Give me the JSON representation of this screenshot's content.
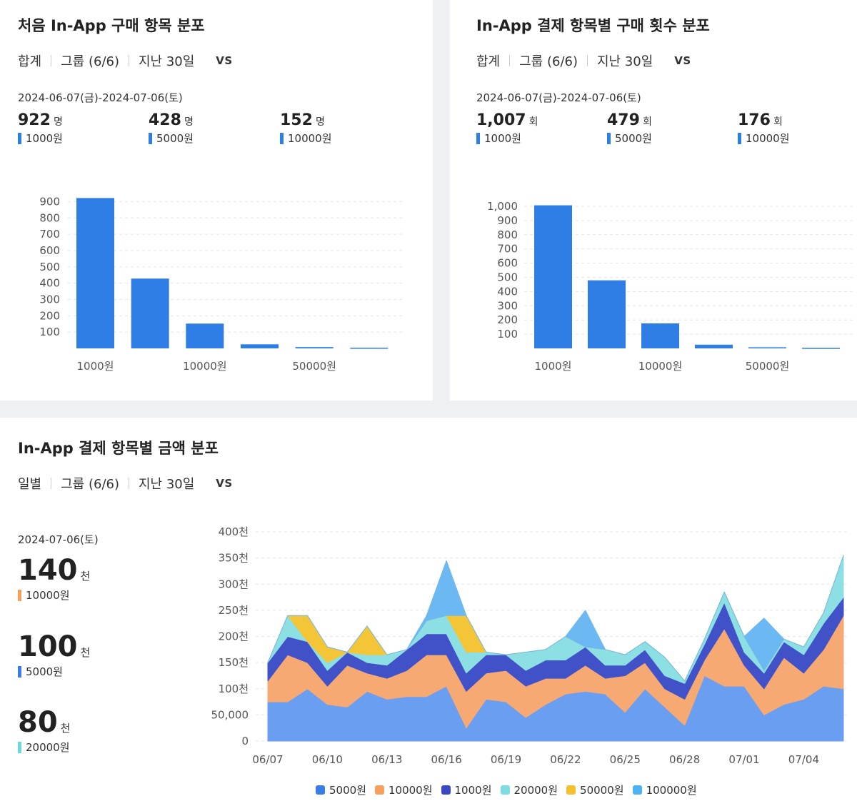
{
  "card1": {
    "title": "처음 In-App 구매 항목 분포",
    "filters": [
      "합계",
      "그룹 (6/6)",
      "지난 30일"
    ],
    "vs": "VS",
    "date": "2024-06-07(금)-2024-07-06(토)",
    "stats": [
      {
        "value": "922",
        "unit": "명",
        "label": "1000원"
      },
      {
        "value": "428",
        "unit": "명",
        "label": "5000원"
      },
      {
        "value": "152",
        "unit": "명",
        "label": "10000원"
      }
    ]
  },
  "card2": {
    "title": "In-App 결제 항목별 구매 횟수 분포",
    "filters": [
      "합계",
      "그룹 (6/6)",
      "지난 30일"
    ],
    "vs": "VS",
    "date": "2024-06-07(금)-2024-07-06(토)",
    "stats": [
      {
        "value": "1,007",
        "unit": "회",
        "label": "1000원"
      },
      {
        "value": "479",
        "unit": "회",
        "label": "5000원"
      },
      {
        "value": "176",
        "unit": "회",
        "label": "10000원"
      }
    ]
  },
  "card3": {
    "title": "In-App 결제 항목별 금액 분포",
    "filters": [
      "일별",
      "그룹 (6/6)",
      "지난 30일"
    ],
    "vs": "VS",
    "date": "2024-07-06(토)",
    "stats": [
      {
        "value": "140",
        "unit": "천",
        "label": "10000원",
        "color": "#f5a05c"
      },
      {
        "value": "100",
        "unit": "천",
        "label": "5000원",
        "color": "#3b7de6"
      },
      {
        "value": "80",
        "unit": "천",
        "label": "20000원",
        "color": "#6ad9de"
      }
    ]
  },
  "colors": {
    "bar": "#2f7ee5",
    "swatch": "#2f7ee5"
  },
  "chart_data": [
    {
      "type": "bar",
      "categories": [
        "1000원",
        "5000원",
        "10000원",
        "20000원",
        "50000원",
        "100000원"
      ],
      "tick_labels_x": [
        "1000원",
        "",
        "10000원",
        "",
        "50000원",
        ""
      ],
      "values": [
        922,
        428,
        152,
        25,
        8,
        4
      ],
      "yticks": [
        "100",
        "200",
        "300",
        "400",
        "500",
        "600",
        "700",
        "800",
        "900"
      ],
      "ylim": [
        0,
        950
      ]
    },
    {
      "type": "bar",
      "categories": [
        "1000원",
        "5000원",
        "10000원",
        "20000원",
        "50000원",
        "100000원"
      ],
      "tick_labels_x": [
        "1000원",
        "",
        "10000원",
        "",
        "50000원",
        ""
      ],
      "values": [
        1007,
        479,
        176,
        26,
        8,
        4
      ],
      "yticks": [
        "100",
        "200",
        "300",
        "400",
        "500",
        "600",
        "700",
        "800",
        "900",
        "1,000"
      ],
      "ylim": [
        0,
        1030
      ]
    },
    {
      "type": "area",
      "stacked": true,
      "x": [
        "06/07",
        "06/08",
        "06/09",
        "06/10",
        "06/11",
        "06/12",
        "06/13",
        "06/14",
        "06/15",
        "06/16",
        "06/17",
        "06/18",
        "06/19",
        "06/20",
        "06/21",
        "06/22",
        "06/23",
        "06/24",
        "06/25",
        "06/26",
        "06/27",
        "06/28",
        "06/29",
        "06/30",
        "07/01",
        "07/02",
        "07/03",
        "07/04",
        "07/05",
        "07/06"
      ],
      "xticks": [
        "06/07",
        "06/10",
        "06/13",
        "06/16",
        "06/19",
        "06/22",
        "06/25",
        "06/28",
        "07/01",
        "07/04"
      ],
      "yticks": [
        "0",
        "50,000",
        "100천",
        "150천",
        "200천",
        "250천",
        "300천",
        "350천",
        "400천"
      ],
      "ylim": [
        0,
        400000
      ],
      "series": [
        {
          "name": "5000원",
          "color": "#6a9ef0",
          "values": [
            75000,
            75000,
            100000,
            70000,
            65000,
            95000,
            80000,
            85000,
            85000,
            105000,
            25000,
            80000,
            75000,
            45000,
            70000,
            90000,
            95000,
            90000,
            55000,
            100000,
            65000,
            30000,
            125000,
            105000,
            105000,
            50000,
            70000,
            80000,
            105000,
            100000
          ]
        },
        {
          "name": "10000원",
          "color": "#f7a974",
          "values": [
            40000,
            90000,
            50000,
            35000,
            80000,
            35000,
            40000,
            50000,
            80000,
            60000,
            70000,
            50000,
            60000,
            60000,
            50000,
            30000,
            50000,
            30000,
            70000,
            50000,
            35000,
            50000,
            30000,
            110000,
            40000,
            50000,
            90000,
            50000,
            70000,
            140000
          ]
        },
        {
          "name": "1000원",
          "color": "#4152c8",
          "values": [
            35000,
            35000,
            40000,
            30000,
            25000,
            20000,
            25000,
            40000,
            40000,
            40000,
            35000,
            35000,
            30000,
            30000,
            35000,
            35000,
            35000,
            25000,
            20000,
            25000,
            25000,
            30000,
            30000,
            50000,
            25000,
            30000,
            30000,
            35000,
            50000,
            35000
          ]
        },
        {
          "name": "20000원",
          "color": "#8ce0e4",
          "values": [
            0,
            40000,
            0,
            15000,
            0,
            15000,
            20000,
            0,
            25000,
            35000,
            40000,
            5000,
            0,
            35000,
            20000,
            45000,
            0,
            30000,
            20000,
            15000,
            35000,
            5000,
            10000,
            20000,
            30000,
            5000,
            5000,
            15000,
            20000,
            80000
          ]
        },
        {
          "name": "50000원",
          "color": "#f5c538",
          "values": [
            0,
            0,
            50000,
            30000,
            0,
            55000,
            0,
            0,
            0,
            0,
            70000,
            0,
            0,
            0,
            0,
            0,
            0,
            0,
            0,
            0,
            0,
            0,
            0,
            0,
            0,
            0,
            0,
            0,
            0,
            0
          ]
        },
        {
          "name": "100000원",
          "color": "#6cb8f2",
          "values": [
            0,
            0,
            0,
            0,
            0,
            0,
            0,
            0,
            10000,
            105000,
            0,
            0,
            0,
            0,
            0,
            0,
            70000,
            0,
            0,
            0,
            0,
            0,
            0,
            0,
            0,
            100000,
            0,
            0,
            0,
            0
          ]
        }
      ]
    }
  ]
}
